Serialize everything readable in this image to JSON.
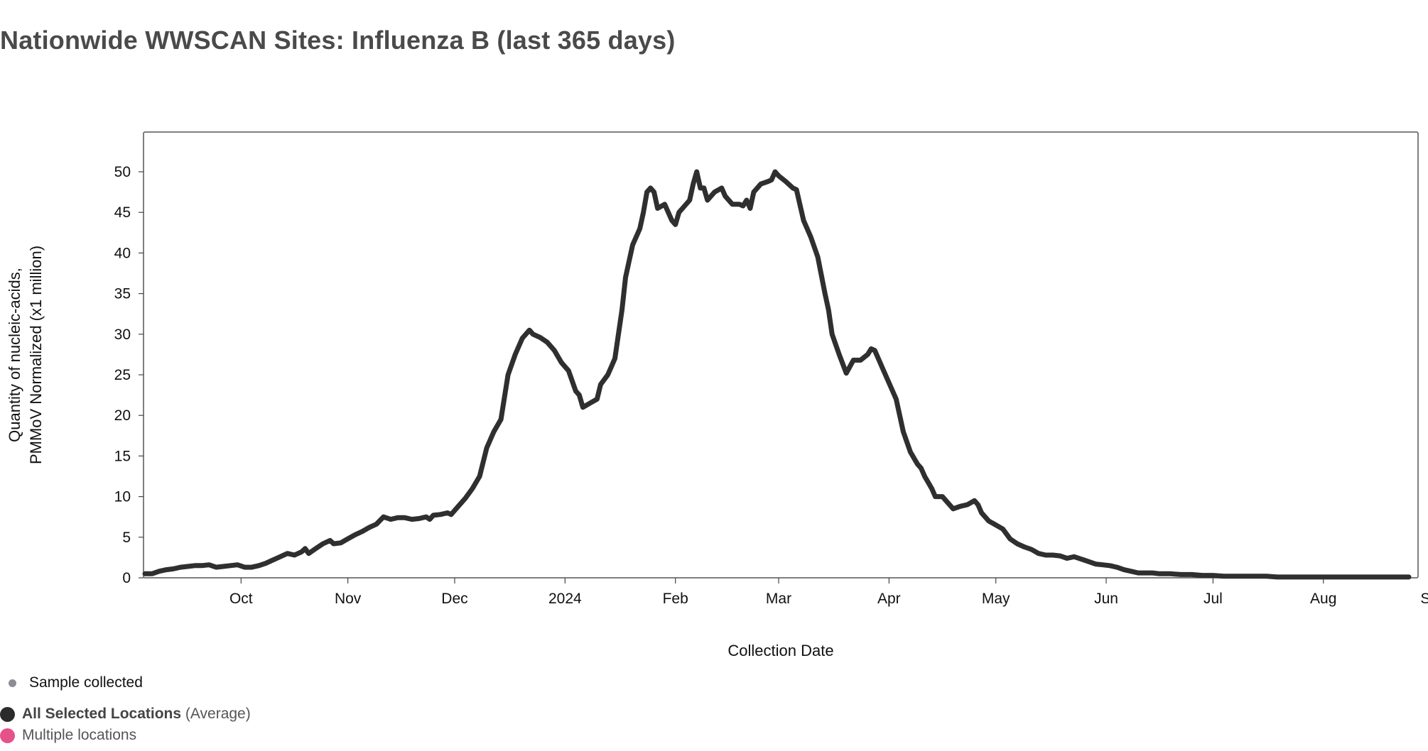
{
  "title": "Nationwide WWSCAN Sites: Influenza B (last 365 days)",
  "chart_data": {
    "type": "line",
    "title": "Nationwide WWSCAN Sites: Influenza B (last 365 days)",
    "xlabel": "Collection Date",
    "ylabel_lines": [
      "Quantity of nucleic-acids,",
      "PMMoV Normalized (x1 million)"
    ],
    "ylim": [
      0,
      55
    ],
    "yticks": [
      0,
      5,
      10,
      15,
      20,
      25,
      30,
      35,
      40,
      45,
      50
    ],
    "xlim": [
      0,
      365
    ],
    "xticks": [
      {
        "label": "Oct",
        "x": 27
      },
      {
        "label": "Nov",
        "x": 57
      },
      {
        "label": "Dec",
        "x": 87
      },
      {
        "label": "2024",
        "x": 118
      },
      {
        "label": "Feb",
        "x": 149
      },
      {
        "label": "Mar",
        "x": 178
      },
      {
        "label": "Apr",
        "x": 209
      },
      {
        "label": "May",
        "x": 239
      },
      {
        "label": "Jun",
        "x": 270
      },
      {
        "label": "Jul",
        "x": 300
      },
      {
        "label": "Aug",
        "x": 331
      },
      {
        "label": "Sep",
        "x": 362
      }
    ],
    "grid": false,
    "series": [
      {
        "name": "All Selected Locations (Average)",
        "color": "#2f2f2f",
        "points": [
          [
            0,
            0.5
          ],
          [
            2,
            0.5
          ],
          [
            4,
            0.8
          ],
          [
            6,
            1.0
          ],
          [
            8,
            1.1
          ],
          [
            10,
            1.3
          ],
          [
            12,
            1.4
          ],
          [
            14,
            1.5
          ],
          [
            16,
            1.5
          ],
          [
            18,
            1.6
          ],
          [
            20,
            1.3
          ],
          [
            22,
            1.4
          ],
          [
            24,
            1.5
          ],
          [
            26,
            1.6
          ],
          [
            28,
            1.3
          ],
          [
            30,
            1.3
          ],
          [
            32,
            1.5
          ],
          [
            34,
            1.8
          ],
          [
            36,
            2.2
          ],
          [
            38,
            2.6
          ],
          [
            40,
            3.0
          ],
          [
            42,
            2.8
          ],
          [
            44,
            3.2
          ],
          [
            45,
            3.6
          ],
          [
            46,
            3.0
          ],
          [
            48,
            3.6
          ],
          [
            50,
            4.2
          ],
          [
            52,
            4.6
          ],
          [
            53,
            4.2
          ],
          [
            55,
            4.3
          ],
          [
            57,
            4.8
          ],
          [
            59,
            5.3
          ],
          [
            61,
            5.7
          ],
          [
            63,
            6.2
          ],
          [
            65,
            6.6
          ],
          [
            67,
            7.5
          ],
          [
            69,
            7.2
          ],
          [
            71,
            7.4
          ],
          [
            73,
            7.4
          ],
          [
            75,
            7.2
          ],
          [
            77,
            7.3
          ],
          [
            79,
            7.5
          ],
          [
            80,
            7.2
          ],
          [
            81,
            7.7
          ],
          [
            83,
            7.8
          ],
          [
            85,
            8.0
          ],
          [
            86,
            7.8
          ],
          [
            88,
            8.8
          ],
          [
            90,
            9.8
          ],
          [
            92,
            11.0
          ],
          [
            94,
            12.5
          ],
          [
            96,
            16.0
          ],
          [
            98,
            18.0
          ],
          [
            100,
            19.5
          ],
          [
            102,
            25.0
          ],
          [
            104,
            27.5
          ],
          [
            106,
            29.5
          ],
          [
            108,
            30.5
          ],
          [
            109,
            30.0
          ],
          [
            111,
            29.6
          ],
          [
            113,
            29.0
          ],
          [
            115,
            28.0
          ],
          [
            117,
            26.5
          ],
          [
            119,
            25.5
          ],
          [
            121,
            23.0
          ],
          [
            122,
            22.5
          ],
          [
            123,
            21.0
          ],
          [
            125,
            21.5
          ],
          [
            127,
            22.0
          ],
          [
            128,
            23.8
          ],
          [
            130,
            25.0
          ],
          [
            131,
            26.0
          ],
          [
            132,
            27.0
          ],
          [
            133,
            30.0
          ],
          [
            134,
            33.0
          ],
          [
            135,
            37.0
          ],
          [
            136,
            39.0
          ],
          [
            137,
            41.0
          ],
          [
            138,
            42.0
          ],
          [
            139,
            43.0
          ],
          [
            140,
            45.0
          ],
          [
            141,
            47.5
          ],
          [
            142,
            48.0
          ],
          [
            143,
            47.5
          ],
          [
            144,
            45.5
          ],
          [
            146,
            46.0
          ],
          [
            148,
            44.0
          ],
          [
            149,
            43.5
          ],
          [
            150,
            45.0
          ],
          [
            151,
            45.5
          ],
          [
            153,
            46.5
          ],
          [
            154,
            48.5
          ],
          [
            155,
            50.0
          ],
          [
            156,
            48.0
          ],
          [
            157,
            48.0
          ],
          [
            158,
            46.5
          ],
          [
            160,
            47.5
          ],
          [
            162,
            48.0
          ],
          [
            163,
            47.0
          ],
          [
            165,
            46.0
          ],
          [
            167,
            46.0
          ],
          [
            168,
            45.8
          ],
          [
            169,
            46.5
          ],
          [
            170,
            45.5
          ],
          [
            171,
            47.5
          ],
          [
            173,
            48.5
          ],
          [
            175,
            48.8
          ],
          [
            176,
            49.0
          ],
          [
            177,
            50.0
          ],
          [
            178,
            49.5
          ],
          [
            180,
            48.8
          ],
          [
            182,
            48.0
          ],
          [
            183,
            47.8
          ],
          [
            185,
            44.0
          ],
          [
            187,
            42.0
          ],
          [
            189,
            39.5
          ],
          [
            191,
            35.0
          ],
          [
            192,
            33.0
          ],
          [
            193,
            30.0
          ],
          [
            195,
            27.5
          ],
          [
            197,
            25.2
          ],
          [
            199,
            26.8
          ],
          [
            201,
            26.8
          ],
          [
            203,
            27.5
          ],
          [
            204,
            28.2
          ],
          [
            205,
            28.0
          ],
          [
            206,
            27.0
          ],
          [
            207,
            26.0
          ],
          [
            208,
            25.0
          ],
          [
            210,
            23.0
          ],
          [
            211,
            22.0
          ],
          [
            213,
            18.0
          ],
          [
            215,
            15.5
          ],
          [
            217,
            14.0
          ],
          [
            218,
            13.5
          ],
          [
            219,
            12.5
          ],
          [
            221,
            11.0
          ],
          [
            222,
            10.0
          ],
          [
            224,
            10.0
          ],
          [
            225,
            9.5
          ],
          [
            227,
            8.5
          ],
          [
            229,
            8.8
          ],
          [
            231,
            9.0
          ],
          [
            233,
            9.5
          ],
          [
            234,
            9.0
          ],
          [
            235,
            8.0
          ],
          [
            237,
            7.0
          ],
          [
            239,
            6.5
          ],
          [
            241,
            6.0
          ],
          [
            243,
            4.8
          ],
          [
            245,
            4.2
          ],
          [
            247,
            3.8
          ],
          [
            249,
            3.5
          ],
          [
            251,
            3.0
          ],
          [
            253,
            2.8
          ],
          [
            255,
            2.8
          ],
          [
            257,
            2.7
          ],
          [
            259,
            2.4
          ],
          [
            261,
            2.6
          ],
          [
            263,
            2.3
          ],
          [
            265,
            2.0
          ],
          [
            267,
            1.7
          ],
          [
            269,
            1.6
          ],
          [
            271,
            1.5
          ],
          [
            273,
            1.3
          ],
          [
            275,
            1.0
          ],
          [
            277,
            0.8
          ],
          [
            279,
            0.6
          ],
          [
            281,
            0.6
          ],
          [
            283,
            0.6
          ],
          [
            285,
            0.5
          ],
          [
            288,
            0.5
          ],
          [
            291,
            0.4
          ],
          [
            294,
            0.4
          ],
          [
            297,
            0.3
          ],
          [
            300,
            0.3
          ],
          [
            303,
            0.2
          ],
          [
            306,
            0.2
          ],
          [
            309,
            0.2
          ],
          [
            312,
            0.2
          ],
          [
            315,
            0.2
          ],
          [
            318,
            0.1
          ],
          [
            321,
            0.1
          ],
          [
            325,
            0.1
          ],
          [
            330,
            0.1
          ],
          [
            335,
            0.1
          ],
          [
            340,
            0.1
          ],
          [
            345,
            0.1
          ],
          [
            350,
            0.1
          ],
          [
            355,
            0.1
          ]
        ]
      }
    ]
  },
  "legend": {
    "sample_label": "Sample collected",
    "sample_color": "#8b8c97",
    "avg_label_bold": "All Selected Locations",
    "avg_label_suffix": "(Average)",
    "avg_color": "#2b2b2b",
    "multi_label": "Multiple locations",
    "multi_color": "#e5528a"
  }
}
